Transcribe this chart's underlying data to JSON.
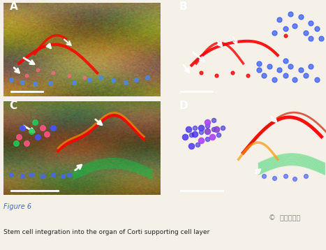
{
  "background_color": "#f5f0e8",
  "figure_width": 4.67,
  "figure_height": 3.58,
  "panels": [
    "A",
    "B",
    "C",
    "D"
  ],
  "caption_figure_label": "Figure 6",
  "caption_figure_color": "#4169aa",
  "caption_text": "Stem cell integration into the organ of Corti supporting cell layer",
  "caption_text_color": "#222222",
  "watermark_text": "©  干细胞之父",
  "watermark_color": "#888888",
  "panel_A_bg": "#8b7a3a",
  "panel_B_bg": "#000000",
  "panel_C_bg": "#7a6e50",
  "panel_D_bg": "#000000",
  "label_color": "#ffffff",
  "label_fontsize": 11
}
